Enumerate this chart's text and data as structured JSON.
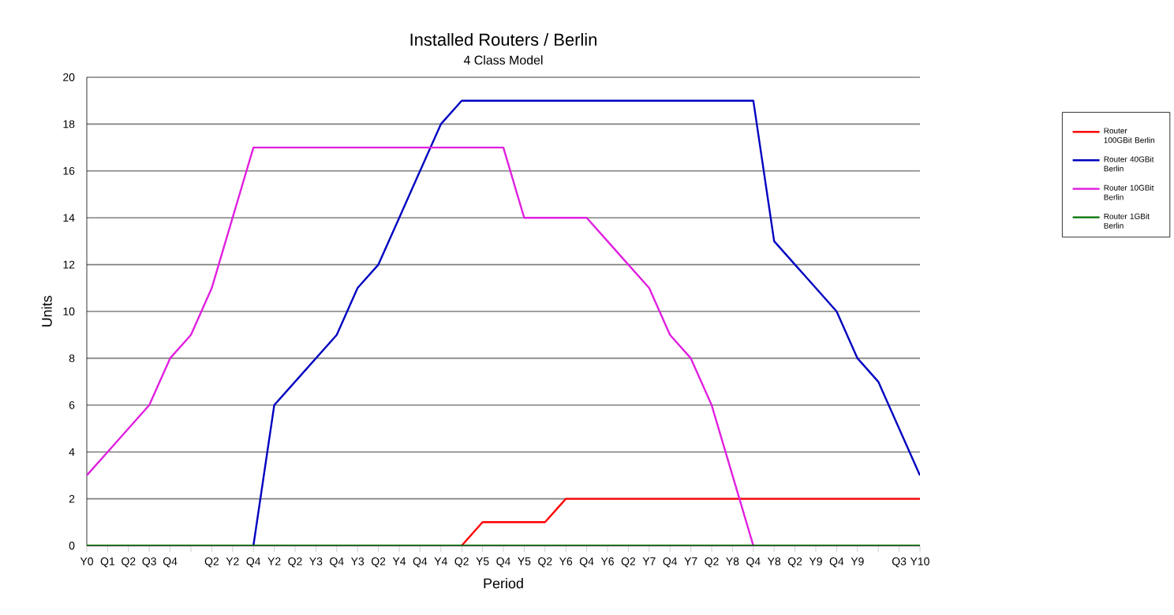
{
  "chart_data": {
    "type": "line",
    "title": "Installed Routers / Berlin",
    "subtitle": "4 Class Model",
    "xlabel": "Period",
    "ylabel": "Units",
    "categories": [
      "Y0",
      "Q1",
      "Q2",
      "Q3",
      "Q4",
      null,
      "Q2",
      "Y2",
      "Q4",
      "Y2",
      "Q2",
      "Y3",
      "Q4",
      "Y3",
      "Q2",
      "Y4",
      "Q4",
      "Y4",
      "Q2",
      "Y5",
      "Q4",
      "Y5",
      "Q2",
      "Y6",
      "Q4",
      "Y6",
      "Q2",
      "Y7",
      "Q4",
      "Y7",
      "Q2",
      "Y8",
      "Q4",
      "Y8",
      "Q2",
      "Y9",
      "Q4",
      "Y9",
      null,
      "Q3",
      "Y10"
    ],
    "series": [
      {
        "name": "Router 100GBit Berlin",
        "color": "#ff0000",
        "values": [
          null,
          null,
          null,
          null,
          null,
          null,
          null,
          null,
          null,
          null,
          null,
          null,
          null,
          null,
          null,
          null,
          null,
          null,
          0,
          1,
          1,
          1,
          1,
          2,
          2,
          2,
          2,
          2,
          2,
          2,
          2,
          2,
          2,
          2,
          2,
          2,
          2,
          2,
          2,
          2,
          2
        ]
      },
      {
        "name": "Router 40GBit Berlin",
        "color": "#0000c0",
        "values": [
          null,
          null,
          null,
          null,
          null,
          null,
          null,
          null,
          0,
          6,
          7,
          8,
          9,
          11,
          12,
          14,
          16,
          18,
          19,
          19,
          19,
          19,
          19,
          19,
          19,
          19,
          19,
          19,
          19,
          19,
          19,
          19,
          19,
          13,
          12,
          11,
          10,
          8,
          7,
          5,
          3
        ]
      },
      {
        "name": "Router 10GBit Berlin",
        "color": "#e020e0",
        "values": [
          3,
          4,
          5,
          6,
          8,
          9,
          11,
          14,
          17,
          17,
          17,
          17,
          17,
          17,
          17,
          17,
          17,
          17,
          17,
          17,
          17,
          14,
          14,
          14,
          14,
          13,
          12,
          11,
          9,
          8,
          6,
          3,
          0,
          null,
          null,
          null,
          null,
          null,
          null,
          null,
          null
        ]
      },
      {
        "name": "Router 1GBit Berlin",
        "color": "#007000",
        "values": [
          0,
          0,
          0,
          0,
          0,
          0,
          0,
          0,
          0,
          0,
          0,
          0,
          0,
          0,
          0,
          0,
          0,
          0,
          0,
          0,
          0,
          0,
          0,
          0,
          0,
          0,
          0,
          0,
          0,
          0,
          0,
          0,
          0,
          0,
          0,
          0,
          0,
          0,
          0,
          0,
          0
        ]
      }
    ],
    "ylim": [
      0,
      20
    ],
    "yticks": [
      0,
      2,
      4,
      6,
      8,
      10,
      12,
      14,
      16,
      18,
      20
    ],
    "grid": "y",
    "legend": "right"
  }
}
